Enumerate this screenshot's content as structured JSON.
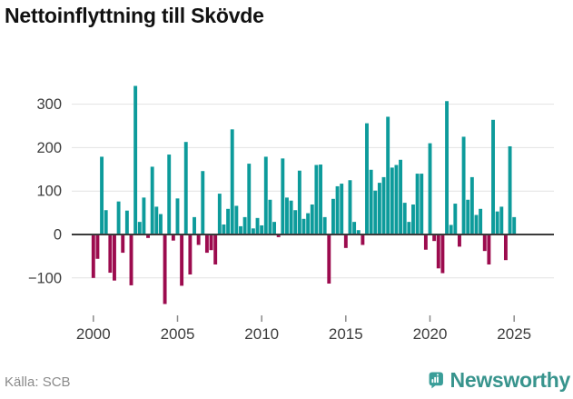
{
  "title": "Nettoinflyttning till Skövde",
  "source": "Källa: SCB",
  "brand": {
    "name": "Newsworthy",
    "badge_color": "#3a9e99",
    "wordmark_color": "#38948d"
  },
  "chart_data": {
    "type": "bar",
    "title": "Nettoinflyttning till Skövde",
    "frequency": "quarterly",
    "start_period": "2000 Q1",
    "x_tick_labels": [
      "2000",
      "2005",
      "2010",
      "2015",
      "2020",
      "2025"
    ],
    "x_tick_indices": [
      0,
      20,
      40,
      60,
      80,
      100
    ],
    "y_tick_values": [
      300,
      200,
      100,
      0,
      -100
    ],
    "y_tick_labels": [
      "300",
      "200",
      "100",
      "0",
      "−100"
    ],
    "ylim": [
      -175,
      355
    ],
    "grid": true,
    "legend": false,
    "positive_color": "#0d9b9b",
    "negative_color": "#9c0b4e",
    "values": [
      -100,
      -56,
      179,
      56,
      -88,
      -106,
      76,
      -42,
      55,
      -117,
      342,
      29,
      85,
      -8,
      156,
      64,
      47,
      -160,
      184,
      -14,
      83,
      -118,
      213,
      -92,
      40,
      -24,
      146,
      -42,
      -36,
      -69,
      94,
      23,
      59,
      242,
      66,
      19,
      40,
      163,
      14,
      38,
      21,
      179,
      80,
      29,
      -6,
      175,
      85,
      78,
      56,
      147,
      36,
      49,
      69,
      160,
      161,
      40,
      -113,
      82,
      111,
      117,
      -31,
      125,
      29,
      10,
      -24,
      256,
      149,
      101,
      119,
      132,
      271,
      154,
      160,
      172,
      73,
      29,
      69,
      140,
      140,
      -35,
      210,
      -15,
      -78,
      -89,
      307,
      22,
      71,
      -28,
      225,
      80,
      132,
      45,
      59,
      -38,
      -69,
      264,
      53,
      64,
      -59,
      203,
      40
    ]
  }
}
